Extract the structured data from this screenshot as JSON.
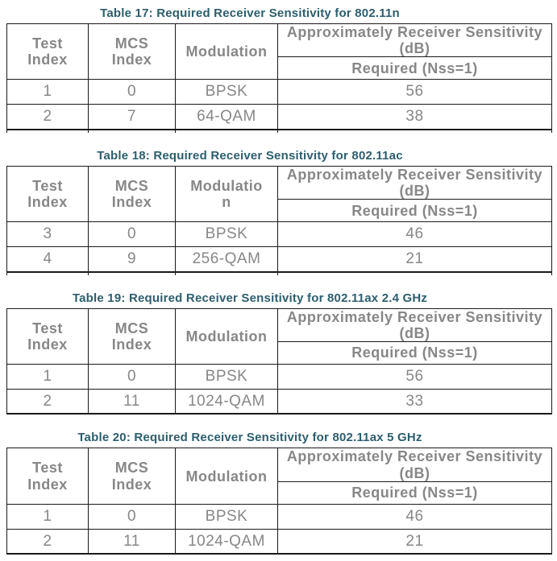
{
  "colors": {
    "title": "#2d5e6d",
    "table_text": "#878787",
    "border": "#1a1a1a",
    "background": "#ffffff"
  },
  "tables": [
    {
      "title": "Table 17: Required Receiver Sensitivity for 802.11n",
      "col_headers": {
        "test": "Test\nIndex",
        "mcs": "MCS\nIndex",
        "modulation": "Modulation",
        "sensitivity": "Approximately Receiver Sensitivity\n(dB)",
        "required": "Required (Nss=1)"
      },
      "rows": [
        {
          "test": "1",
          "mcs": "0",
          "modulation": "BPSK",
          "required": "56"
        },
        {
          "test": "2",
          "mcs": "7",
          "modulation": "64-QAM",
          "required": "38"
        }
      ]
    },
    {
      "title": "Table 18: Required Receiver Sensitivity for 802.11ac",
      "col_headers": {
        "test": "Test\nIndex",
        "mcs": "MCS\nIndex",
        "modulation": "Modulatio\nn",
        "sensitivity": "Approximately Receiver Sensitivity\n(dB)",
        "required": "Required (Nss=1)"
      },
      "rows": [
        {
          "test": "3",
          "mcs": "0",
          "modulation": "BPSK",
          "required": "46"
        },
        {
          "test": "4",
          "mcs": "9",
          "modulation": "256-QAM",
          "required": "21"
        }
      ]
    },
    {
      "title": "Table 19: Required Receiver Sensitivity for 802.11ax 2.4 GHz",
      "col_headers": {
        "test": "Test\nIndex",
        "mcs": "MCS\nIndex",
        "modulation": "Modulation",
        "sensitivity": "Approximately Receiver Sensitivity\n(dB)",
        "required": "Required (Nss=1)"
      },
      "rows": [
        {
          "test": "1",
          "mcs": "0",
          "modulation": "BPSK",
          "required": "56"
        },
        {
          "test": "2",
          "mcs": "11",
          "modulation": "1024-QAM",
          "required": "33"
        }
      ]
    },
    {
      "title": "Table 20: Required Receiver Sensitivity for 802.11ax 5 GHz",
      "col_headers": {
        "test": "Test\nIndex",
        "mcs": "MCS\nIndex",
        "modulation": "Modulation",
        "sensitivity": "Approximately Receiver Sensitivity\n(dB)",
        "required": "Required (Nss=1)"
      },
      "rows": [
        {
          "test": "1",
          "mcs": "0",
          "modulation": "BPSK",
          "required": "46"
        },
        {
          "test": "2",
          "mcs": "11",
          "modulation": "1024-QAM",
          "required": "21"
        }
      ]
    }
  ]
}
